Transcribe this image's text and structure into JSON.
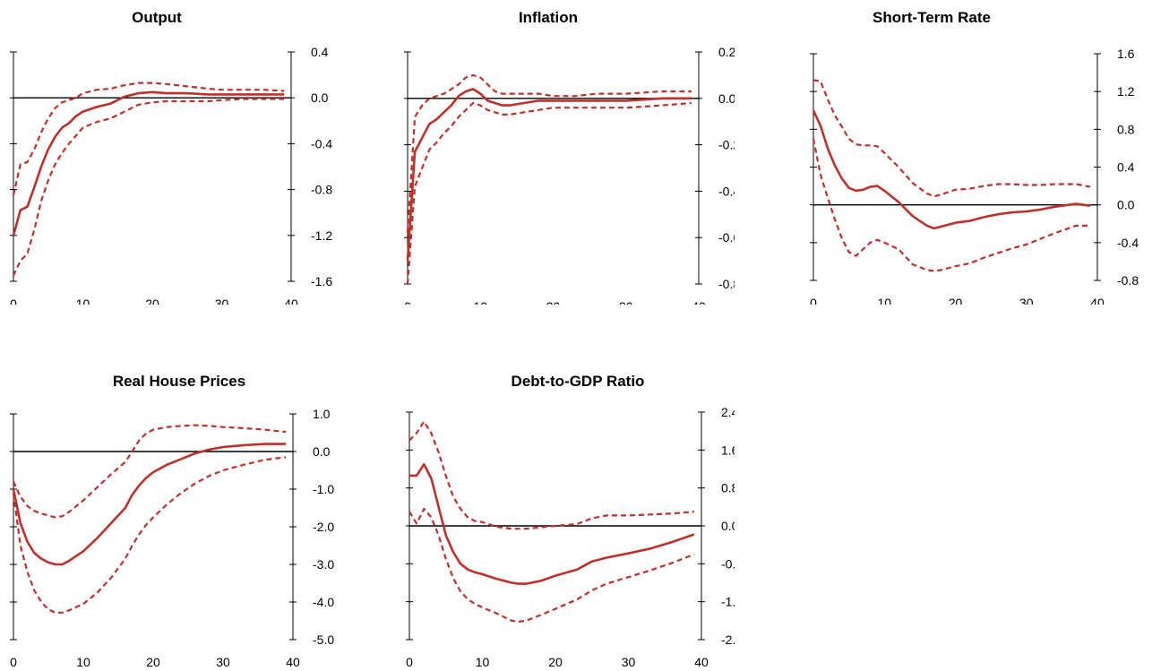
{
  "colors": {
    "line": "#c0302a",
    "axis": "#000000"
  },
  "chart_data": [
    {
      "type": "line",
      "title": "Output",
      "xlim": [
        0,
        40
      ],
      "ylim": [
        -1.6,
        0.4
      ],
      "xticks": [
        0,
        10,
        20,
        30,
        40
      ],
      "yticks": [
        -1.6,
        -1.2,
        -0.8,
        -0.4,
        0.0,
        0.4
      ],
      "ytick_labels": [
        "-1.6",
        "-1.2",
        "-0.8",
        "-0.4",
        "0.0",
        "0.4"
      ],
      "x": [
        0,
        1,
        2,
        3,
        4,
        5,
        6,
        7,
        8,
        9,
        10,
        12,
        14,
        16,
        18,
        20,
        22,
        25,
        28,
        30,
        33,
        36,
        39
      ],
      "series": [
        {
          "style": "solid",
          "values": [
            -1.2,
            -0.98,
            -0.95,
            -0.78,
            -0.6,
            -0.45,
            -0.34,
            -0.26,
            -0.22,
            -0.16,
            -0.12,
            -0.08,
            -0.05,
            0.01,
            0.04,
            0.05,
            0.04,
            0.04,
            0.03,
            0.03,
            0.03,
            0.03,
            0.03
          ]
        },
        {
          "style": "dashed",
          "values": [
            -0.85,
            -0.58,
            -0.56,
            -0.45,
            -0.3,
            -0.18,
            -0.09,
            -0.04,
            -0.02,
            0.0,
            0.04,
            0.07,
            0.08,
            0.11,
            0.13,
            0.13,
            0.12,
            0.1,
            0.08,
            0.07,
            0.07,
            0.07,
            0.06
          ]
        },
        {
          "style": "dashed",
          "values": [
            -1.55,
            -1.42,
            -1.36,
            -1.15,
            -0.9,
            -0.72,
            -0.58,
            -0.48,
            -0.4,
            -0.33,
            -0.26,
            -0.21,
            -0.18,
            -0.12,
            -0.06,
            -0.04,
            -0.03,
            -0.03,
            -0.03,
            -0.02,
            -0.01,
            -0.01,
            -0.01
          ]
        }
      ]
    },
    {
      "type": "line",
      "title": "Inflation",
      "xlim": [
        0,
        40
      ],
      "ylim": [
        -0.8,
        0.2
      ],
      "xticks": [
        0,
        10,
        20,
        30,
        40
      ],
      "yticks": [
        -0.8,
        -0.6,
        -0.4,
        -0.2,
        0.0,
        0.2
      ],
      "ytick_labels": [
        "-0.8",
        "-0.6",
        "-0.4",
        "-0.2",
        "0.0",
        "0.2"
      ],
      "x": [
        0,
        1,
        2,
        3,
        4,
        5,
        6,
        7,
        8,
        9,
        10,
        11,
        12,
        13,
        14,
        16,
        18,
        20,
        23,
        26,
        30,
        35,
        39
      ],
      "series": [
        {
          "style": "solid",
          "values": [
            -0.7,
            -0.23,
            -0.17,
            -0.11,
            -0.09,
            -0.06,
            -0.03,
            0.01,
            0.03,
            0.04,
            0.02,
            -0.01,
            -0.02,
            -0.03,
            -0.03,
            -0.02,
            -0.01,
            -0.01,
            -0.01,
            -0.01,
            -0.01,
            0.0,
            0.0
          ]
        },
        {
          "style": "dashed",
          "values": [
            -0.58,
            -0.08,
            -0.03,
            0.0,
            0.01,
            0.02,
            0.04,
            0.06,
            0.09,
            0.1,
            0.09,
            0.06,
            0.03,
            0.02,
            0.02,
            0.02,
            0.02,
            0.01,
            0.01,
            0.02,
            0.02,
            0.03,
            0.03
          ]
        },
        {
          "style": "dashed",
          "values": [
            -0.8,
            -0.38,
            -0.3,
            -0.22,
            -0.19,
            -0.15,
            -0.12,
            -0.08,
            -0.05,
            -0.02,
            -0.03,
            -0.05,
            -0.06,
            -0.07,
            -0.07,
            -0.06,
            -0.05,
            -0.04,
            -0.04,
            -0.04,
            -0.04,
            -0.03,
            -0.02
          ]
        }
      ]
    },
    {
      "type": "line",
      "title": "Short-Term Rate",
      "xlim": [
        0,
        40
      ],
      "ylim": [
        -0.8,
        1.6
      ],
      "xticks": [
        0,
        10,
        20,
        30,
        40
      ],
      "yticks": [
        -0.8,
        -0.4,
        0.0,
        0.4,
        0.8,
        1.2,
        1.6
      ],
      "ytick_labels": [
        "-0.8",
        "-0.4",
        "0.0",
        "0.4",
        "0.8",
        "1.2",
        "1.6"
      ],
      "x": [
        0,
        1,
        2,
        3,
        4,
        5,
        6,
        7,
        8,
        9,
        10,
        12,
        14,
        16,
        17,
        18,
        20,
        22,
        24,
        26,
        28,
        30,
        32,
        34,
        37,
        39
      ],
      "series": [
        {
          "style": "solid",
          "values": [
            1.0,
            0.84,
            0.6,
            0.42,
            0.28,
            0.18,
            0.15,
            0.16,
            0.19,
            0.2,
            0.15,
            0.03,
            -0.12,
            -0.22,
            -0.25,
            -0.23,
            -0.19,
            -0.17,
            -0.13,
            -0.1,
            -0.08,
            -0.07,
            -0.05,
            -0.02,
            0.01,
            -0.01
          ]
        },
        {
          "style": "dashed",
          "values": [
            1.32,
            1.31,
            1.12,
            0.95,
            0.83,
            0.7,
            0.64,
            0.63,
            0.63,
            0.62,
            0.55,
            0.4,
            0.23,
            0.12,
            0.09,
            0.11,
            0.16,
            0.17,
            0.2,
            0.22,
            0.22,
            0.21,
            0.21,
            0.22,
            0.22,
            0.19
          ]
        },
        {
          "style": "dashed",
          "values": [
            0.7,
            0.32,
            0.08,
            -0.15,
            -0.35,
            -0.5,
            -0.54,
            -0.47,
            -0.4,
            -0.37,
            -0.4,
            -0.47,
            -0.63,
            -0.69,
            -0.7,
            -0.69,
            -0.65,
            -0.62,
            -0.56,
            -0.51,
            -0.46,
            -0.42,
            -0.36,
            -0.3,
            -0.22,
            -0.22
          ]
        }
      ]
    },
    {
      "type": "line",
      "title": "Real House Prices",
      "xlim": [
        0,
        40
      ],
      "ylim": [
        -5.0,
        1.0
      ],
      "xticks": [
        0,
        10,
        20,
        30,
        40
      ],
      "yticks": [
        -5.0,
        -4.0,
        -3.0,
        -2.0,
        -1.0,
        0.0,
        1.0
      ],
      "ytick_labels": [
        "-5.0",
        "-4.0",
        "-3.0",
        "-2.0",
        "-1.0",
        "0.0",
        "1.0"
      ],
      "x": [
        0,
        1,
        2,
        3,
        4,
        5,
        6,
        7,
        8,
        10,
        12,
        14,
        16,
        17,
        18,
        19,
        20,
        22,
        24,
        26,
        28,
        30,
        33,
        36,
        39
      ],
      "series": [
        {
          "style": "solid",
          "values": [
            -1.0,
            -1.9,
            -2.4,
            -2.7,
            -2.85,
            -2.95,
            -3.0,
            -3.0,
            -2.9,
            -2.65,
            -2.3,
            -1.9,
            -1.5,
            -1.15,
            -0.9,
            -0.7,
            -0.55,
            -0.35,
            -0.2,
            -0.05,
            0.05,
            0.12,
            0.17,
            0.2,
            0.2
          ]
        },
        {
          "style": "dashed",
          "values": [
            -0.8,
            -1.2,
            -1.45,
            -1.58,
            -1.65,
            -1.7,
            -1.75,
            -1.72,
            -1.6,
            -1.3,
            -0.95,
            -0.6,
            -0.28,
            0.0,
            0.3,
            0.48,
            0.58,
            0.65,
            0.68,
            0.7,
            0.68,
            0.65,
            0.62,
            0.58,
            0.52
          ]
        },
        {
          "style": "dashed",
          "values": [
            -1.1,
            -2.5,
            -3.2,
            -3.7,
            -4.0,
            -4.2,
            -4.28,
            -4.28,
            -4.22,
            -4.05,
            -3.75,
            -3.35,
            -2.85,
            -2.5,
            -2.2,
            -1.95,
            -1.75,
            -1.4,
            -1.1,
            -0.85,
            -0.65,
            -0.5,
            -0.35,
            -0.22,
            -0.15
          ]
        }
      ]
    },
    {
      "type": "line",
      "title": "Debt-to-GDP Ratio",
      "xlim": [
        0,
        40
      ],
      "ylim": [
        -2.4,
        2.4
      ],
      "xticks": [
        0,
        10,
        20,
        30,
        40
      ],
      "yticks": [
        -2.4,
        -1.6,
        -0.8,
        0.0,
        0.8,
        1.6,
        2.4
      ],
      "ytick_labels": [
        "-2.4",
        "-1.6",
        "-0.8",
        "0.0",
        "0.8",
        "1.6",
        "2.4"
      ],
      "x": [
        0,
        1,
        2,
        3,
        4,
        5,
        6,
        7,
        8,
        9,
        10,
        12,
        14,
        15,
        16,
        18,
        20,
        23,
        25,
        27,
        30,
        33,
        36,
        39
      ],
      "series": [
        {
          "style": "solid",
          "values": [
            1.06,
            1.06,
            1.3,
            1.0,
            0.4,
            -0.2,
            -0.55,
            -0.8,
            -0.92,
            -0.98,
            -1.02,
            -1.12,
            -1.2,
            -1.22,
            -1.22,
            -1.16,
            -1.05,
            -0.92,
            -0.75,
            -0.67,
            -0.58,
            -0.48,
            -0.34,
            -0.18
          ]
        },
        {
          "style": "dashed",
          "values": [
            1.8,
            1.96,
            2.2,
            1.95,
            1.55,
            1.05,
            0.62,
            0.36,
            0.18,
            0.1,
            0.08,
            -0.02,
            -0.06,
            -0.06,
            -0.06,
            -0.03,
            0.0,
            0.04,
            0.16,
            0.22,
            0.22,
            0.24,
            0.26,
            0.3
          ]
        },
        {
          "style": "dashed",
          "values": [
            0.3,
            0.05,
            0.36,
            0.18,
            -0.2,
            -0.7,
            -1.1,
            -1.38,
            -1.55,
            -1.65,
            -1.72,
            -1.85,
            -2.0,
            -2.02,
            -2.0,
            -1.88,
            -1.75,
            -1.55,
            -1.36,
            -1.22,
            -1.08,
            -0.94,
            -0.78,
            -0.6
          ]
        }
      ]
    }
  ]
}
